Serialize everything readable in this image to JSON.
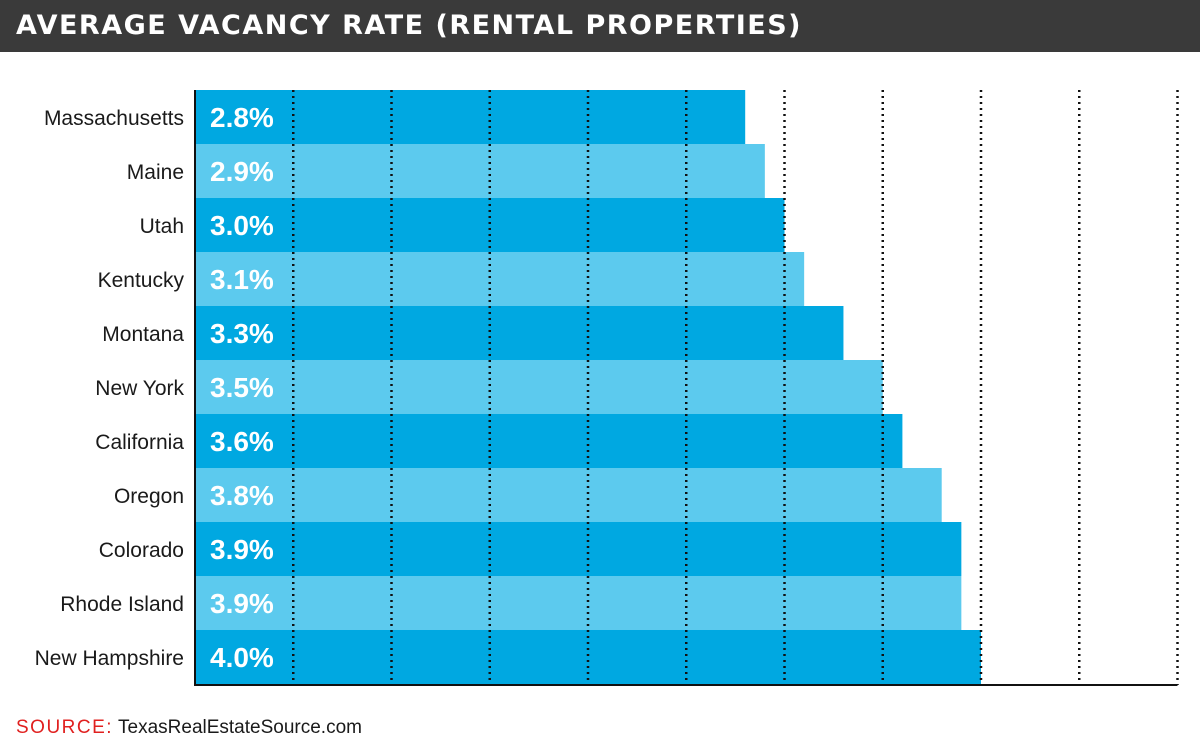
{
  "header": {
    "title": "AVERAGE VACANCY RATE (RENTAL PROPERTIES)"
  },
  "footer": {
    "source_label": "SOURCE:",
    "source_text": "TexasRealEstateSource.com"
  },
  "colors": {
    "title_bg": "#3a3a3a",
    "bar_dark": "#00a8e1",
    "bar_light": "#5ccaee",
    "source_label": "#e0201f"
  },
  "chart_data": {
    "type": "bar",
    "orientation": "horizontal",
    "title": "AVERAGE VACANCY RATE (RENTAL PROPERTIES)",
    "categories": [
      "Massachusetts",
      "Maine",
      "Utah",
      "Kentucky",
      "Montana",
      "New York",
      "California",
      "Oregon",
      "Colorado",
      "Rhode Island",
      "New Hampshire"
    ],
    "values": [
      2.8,
      2.9,
      3.0,
      3.1,
      3.3,
      3.5,
      3.6,
      3.8,
      3.9,
      3.9,
      4.0
    ],
    "value_labels": [
      "2.8%",
      "2.9%",
      "3.0%",
      "3.1%",
      "3.3%",
      "3.5%",
      "3.6%",
      "3.8%",
      "3.9%",
      "3.9%",
      "4.0%"
    ],
    "unit": "%",
    "xlim": [
      0,
      5
    ],
    "gridlines": [
      0.5,
      1.0,
      1.5,
      2.0,
      2.5,
      3.0,
      3.5,
      4.0,
      4.5,
      5.0
    ],
    "grid": "dotted vertical",
    "xlabel": "",
    "ylabel": ""
  }
}
